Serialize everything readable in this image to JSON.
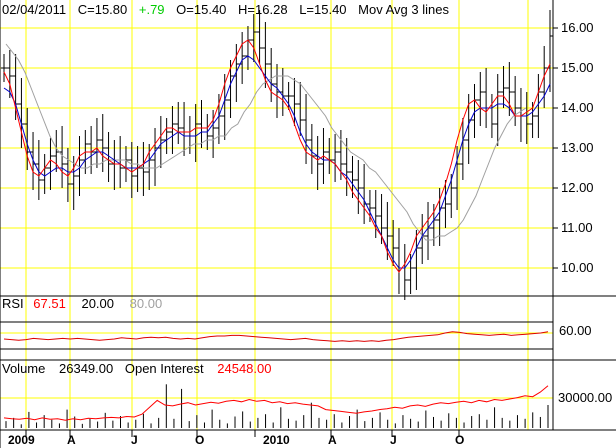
{
  "header": {
    "date": "02/04/2011",
    "close": "C=15.80",
    "change": "+.79",
    "open": "O=15.40",
    "high": "H=16.28",
    "low": "L=15.40",
    "study": "Mov Avg 3 lines"
  },
  "rsi_panel": {
    "label": "RSI",
    "value": "67.51",
    "lower": "20.00",
    "upper": "80.00",
    "tick": "60.00"
  },
  "volume_panel": {
    "label": "Volume",
    "volume": "26349.00",
    "oi_label": "Open Interest",
    "oi": "24548.00",
    "tick": "30000.00"
  },
  "colors": {
    "grid": "#ffff00",
    "price_bars": "#000000",
    "ma_fast": "#ff0000",
    "ma_mid": "#0000cc",
    "ma_slow": "#a0a0a0",
    "change_up": "#00cc00",
    "rsi_value": "#ff0000",
    "rsi_line": "#dd0000",
    "rsi_upper": "#a0a0a0",
    "oi_value": "#ff0000"
  },
  "chart_data": {
    "type": "line",
    "instrument_chart": "OHLC bars with 3 moving averages",
    "price_axis": {
      "ylim": [
        9.3,
        16.5
      ],
      "ticks": [
        "10.00",
        "11.00",
        "12.00",
        "13.00",
        "14.00",
        "15.00",
        "16.00"
      ]
    },
    "x_labels": [
      "2009",
      "A",
      "J",
      "O",
      "2010",
      "A",
      "J",
      "O"
    ],
    "price": {
      "close": [
        15.0,
        14.8,
        14.1,
        13.6,
        12.9,
        12.6,
        12.2,
        12.5,
        12.8,
        12.9,
        12.6,
        12.1,
        12.3,
        12.7,
        13.1,
        12.9,
        13.2,
        13.0,
        12.6,
        12.7,
        12.5,
        12.7,
        12.3,
        12.5,
        12.4,
        12.7,
        13.0,
        13.2,
        13.4,
        13.6,
        13.5,
        13.4,
        13.3,
        13.6,
        13.5,
        13.3,
        13.5,
        13.8,
        14.2,
        14.8,
        15.1,
        15.3,
        15.7,
        15.9,
        15.5,
        15.1,
        14.6,
        14.4,
        14.3,
        14.3,
        14.1,
        13.7,
        13.2,
        12.8,
        12.6,
        12.9,
        12.7,
        12.9,
        12.6,
        12.4,
        12.2,
        12.0,
        11.6,
        11.5,
        11.3,
        11.0,
        10.8,
        10.5,
        10.0,
        9.7,
        10.0,
        10.5,
        10.8,
        11.0,
        11.2,
        11.5,
        11.6,
        12.0,
        12.6,
        13.2,
        13.7,
        14.2,
        14.4,
        14.0,
        13.6,
        14.4,
        14.5,
        14.4,
        14.0,
        13.8,
        13.6,
        13.8,
        14.4,
        15.0,
        15.8
      ],
      "ma_fast": [
        14.9,
        14.6,
        14.0,
        13.4,
        12.8,
        12.4,
        12.3,
        12.5,
        12.7,
        12.6,
        12.4,
        12.3,
        12.5,
        12.8,
        12.9,
        12.9,
        13.0,
        12.8,
        12.7,
        12.6,
        12.6,
        12.5,
        12.4,
        12.5,
        12.6,
        12.9,
        13.1,
        13.3,
        13.5,
        13.5,
        13.4,
        13.4,
        13.4,
        13.5,
        13.5,
        13.5,
        13.7,
        14.1,
        14.6,
        15.0,
        15.3,
        15.6,
        15.7,
        15.5,
        15.1,
        14.7,
        14.4,
        14.3,
        14.2,
        14.0,
        13.6,
        13.2,
        12.9,
        12.8,
        12.7,
        12.8,
        12.7,
        12.6,
        12.4,
        12.2,
        11.9,
        11.7,
        11.5,
        11.3,
        11.0,
        10.8,
        10.4,
        10.1,
        9.9,
        10.1,
        10.4,
        10.8,
        11.0,
        11.2,
        11.4,
        11.7,
        12.1,
        12.6,
        13.2,
        13.7,
        14.1,
        14.2,
        14.0,
        13.9,
        14.1,
        14.3,
        14.3,
        14.1,
        13.8,
        13.8,
        13.9,
        14.0,
        14.4,
        14.8,
        15.1
      ],
      "ma_mid": [
        14.5,
        14.4,
        14.1,
        13.6,
        13.1,
        12.7,
        12.4,
        12.3,
        12.4,
        12.5,
        12.5,
        12.4,
        12.4,
        12.5,
        12.7,
        12.8,
        12.9,
        12.9,
        12.8,
        12.7,
        12.6,
        12.5,
        12.5,
        12.5,
        12.6,
        12.7,
        12.9,
        13.1,
        13.2,
        13.3,
        13.4,
        13.3,
        13.3,
        13.3,
        13.4,
        13.4,
        13.6,
        13.8,
        14.2,
        14.6,
        14.9,
        15.2,
        15.3,
        15.2,
        15.0,
        14.8,
        14.6,
        14.5,
        14.3,
        14.1,
        13.8,
        13.4,
        13.1,
        12.9,
        12.8,
        12.7,
        12.7,
        12.6,
        12.4,
        12.3,
        12.1,
        11.9,
        11.7,
        11.4,
        11.1,
        10.8,
        10.5,
        10.2,
        10.0,
        10.0,
        10.2,
        10.5,
        10.8,
        11.0,
        11.2,
        11.4,
        11.8,
        12.2,
        12.7,
        13.2,
        13.6,
        13.9,
        14.0,
        14.0,
        14.0,
        14.1,
        14.1,
        14.0,
        13.8,
        13.8,
        13.8,
        13.9,
        14.1,
        14.3,
        14.6
      ],
      "ma_slow": [
        15.6,
        15.4,
        15.2,
        14.9,
        14.5,
        14.1,
        13.7,
        13.3,
        13.0,
        12.8,
        12.7,
        12.6,
        12.5,
        12.5,
        12.6,
        12.6,
        12.7,
        12.7,
        12.7,
        12.7,
        12.6,
        12.6,
        12.5,
        12.5,
        12.5,
        12.6,
        12.7,
        12.8,
        12.9,
        13.0,
        13.1,
        13.1,
        13.2,
        13.2,
        13.3,
        13.3,
        13.5,
        13.6,
        13.9,
        14.1,
        14.4,
        14.6,
        14.7,
        14.8,
        14.8,
        14.8,
        14.7,
        14.6,
        14.4,
        14.2,
        14.0,
        13.8,
        13.5,
        13.3,
        13.1,
        12.9,
        12.8,
        12.7,
        12.5,
        12.4,
        12.2,
        12.0,
        11.8,
        11.6,
        11.4,
        11.1,
        10.9,
        10.7,
        10.7,
        10.8,
        10.8,
        10.9,
        11.0,
        11.2,
        11.5,
        11.8,
        12.2,
        12.6,
        13.0,
        13.3,
        13.6,
        13.8,
        13.9,
        14.0
      ]
    },
    "rsi_axis": {
      "ylim": [
        0,
        100
      ],
      "ticks": [
        "60.00"
      ]
    },
    "rsi": [
      55,
      54,
      53,
      54,
      56,
      55,
      54,
      55,
      56,
      55,
      56,
      55,
      54,
      53,
      54,
      55,
      57,
      56,
      55,
      57,
      58,
      57,
      58,
      56,
      55,
      56,
      55,
      57,
      59,
      60,
      60,
      61,
      61,
      60,
      59,
      58,
      57,
      56,
      55,
      54,
      55,
      56,
      54,
      53,
      52,
      51,
      52,
      51,
      52,
      51,
      52,
      51,
      53,
      54,
      56,
      58,
      59,
      60,
      61,
      62,
      65,
      67,
      66,
      64,
      63,
      62,
      61,
      62,
      63,
      61,
      62,
      63,
      64,
      65,
      67
    ],
    "volume_axis": {
      "ticks": [
        "30000.00"
      ]
    },
    "volume": [
      0.15,
      0.22,
      0.08,
      0.35,
      0.12,
      0.28,
      0.18,
      0.1,
      0.4,
      0.25,
      0.09,
      0.2,
      0.14,
      0.33,
      0.16,
      0.26,
      0.12,
      0.18,
      0.31,
      0.1,
      0.22,
      0.95,
      0.2,
      0.85,
      0.15,
      0.28,
      0.12,
      0.4,
      0.18,
      0.1,
      0.25,
      0.36,
      0.14,
      0.22,
      0.3,
      0.12,
      0.45,
      0.2,
      0.16,
      0.28,
      0.55,
      0.22,
      0.18,
      0.3,
      0.12,
      0.26,
      0.4,
      0.15,
      0.22,
      0.34,
      0.18,
      0.1,
      0.28,
      0.2,
      0.14,
      0.38,
      0.24,
      0.16,
      0.32,
      0.22,
      0.12,
      0.26,
      0.3,
      0.18,
      0.45,
      0.22,
      0.16,
      0.28,
      0.2,
      0.34,
      0.24,
      0.5
    ],
    "open_interest": [
      0.22,
      0.2,
      0.19,
      0.21,
      0.18,
      0.22,
      0.19,
      0.2,
      0.17,
      0.2,
      0.18,
      0.21,
      0.2,
      0.22,
      0.23,
      0.22,
      0.25,
      0.24,
      0.3,
      0.45,
      0.6,
      0.5,
      0.48,
      0.52,
      0.55,
      0.5,
      0.53,
      0.56,
      0.54,
      0.58,
      0.6,
      0.57,
      0.62,
      0.58,
      0.6,
      0.55,
      0.57,
      0.53,
      0.55,
      0.52,
      0.5,
      0.48,
      0.4,
      0.38,
      0.36,
      0.34,
      0.32,
      0.35,
      0.37,
      0.4,
      0.42,
      0.45,
      0.43,
      0.48,
      0.5,
      0.47,
      0.52,
      0.55,
      0.53,
      0.56,
      0.58,
      0.55,
      0.6,
      0.57,
      0.62,
      0.6,
      0.63,
      0.66,
      0.7,
      0.68,
      0.78,
      0.92
    ]
  }
}
